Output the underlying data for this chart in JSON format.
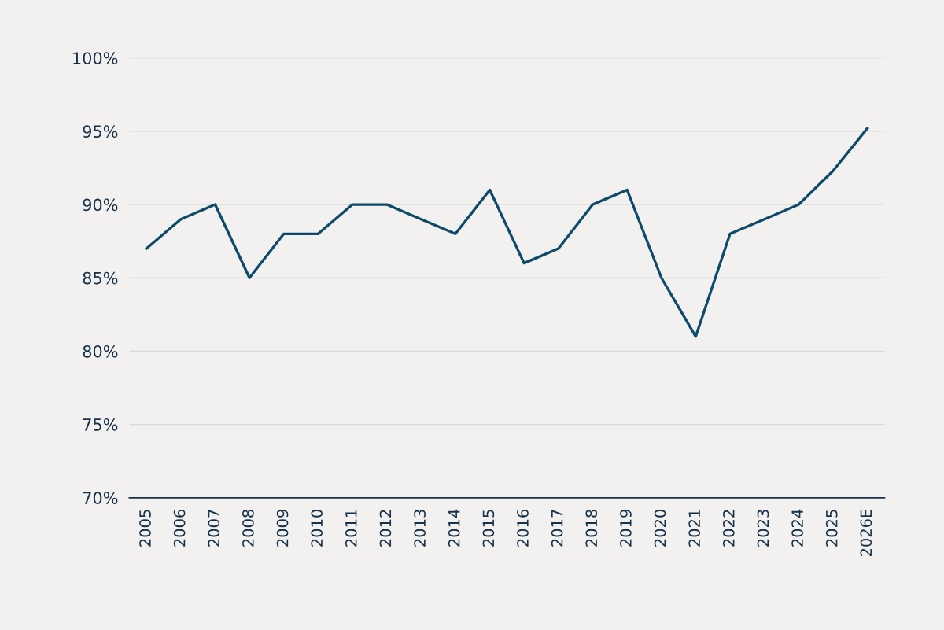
{
  "chart_data": {
    "type": "line",
    "categories": [
      "2005",
      "2006",
      "2007",
      "2008",
      "2009",
      "2010",
      "2011",
      "2012",
      "2013",
      "2014",
      "2015",
      "2016",
      "2017",
      "2018",
      "2019",
      "2020",
      "2021",
      "2022",
      "2023",
      "2024",
      "2025",
      "2026E"
    ],
    "series": [
      {
        "color": "#0e4a6a",
        "values": [
          87,
          89,
          90,
          85,
          88,
          88,
          90,
          90,
          89,
          88,
          91,
          86,
          87,
          90,
          91,
          85,
          81,
          88,
          89,
          90,
          92.3,
          95.2
        ]
      }
    ],
    "ylim": [
      70,
      100
    ],
    "yticks": [
      {
        "value": 70,
        "label": "70%"
      },
      {
        "value": 75,
        "label": "75%"
      },
      {
        "value": 80,
        "label": "80%"
      },
      {
        "value": 85,
        "label": "85%"
      },
      {
        "value": 90,
        "label": "90%"
      },
      {
        "value": 95,
        "label": "95%"
      },
      {
        "value": 100,
        "label": "100%"
      }
    ],
    "grid": "y",
    "marker": "none",
    "line_style": "solid"
  }
}
